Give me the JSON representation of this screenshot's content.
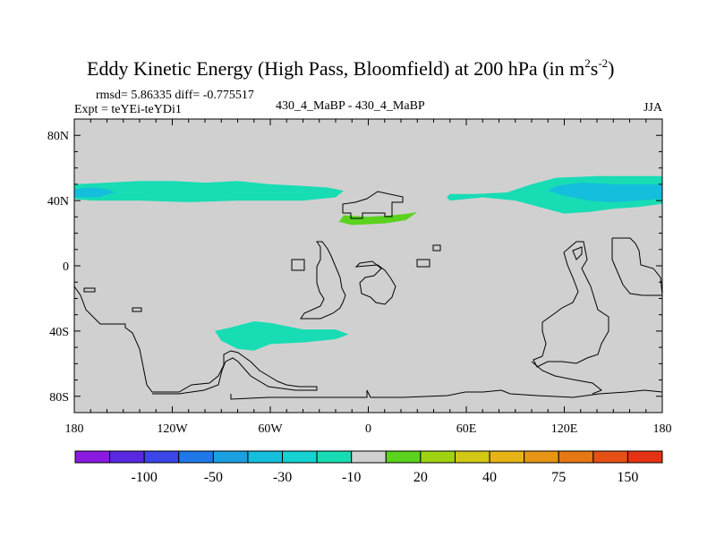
{
  "chart_data": {
    "type": "heatmap",
    "title": "Eddy Kinetic Energy (High Pass, Bloomfield) at 200 hPa (in m",
    "title_units_sup_1": "2",
    "title_units_mid": "s",
    "title_units_sup_2": "-2",
    "title_close": ")",
    "stats": "rmsd= 5.86335 diff= -0.775517",
    "experiment": "Expt = teYEi-teYDi1",
    "comparison": "430_4_MaBP - 430_4_MaBP",
    "season": "JJA",
    "xlim": [
      -180,
      180
    ],
    "ylim": [
      -90,
      90
    ],
    "x_ticks": [
      {
        "value": -180,
        "label": "180"
      },
      {
        "value": -120,
        "label": "120W"
      },
      {
        "value": -60,
        "label": "60W"
      },
      {
        "value": 0,
        "label": "0"
      },
      {
        "value": 60,
        "label": "60E"
      },
      {
        "value": 120,
        "label": "120E"
      },
      {
        "value": 180,
        "label": "180"
      }
    ],
    "y_ticks": [
      {
        "value": 80,
        "label": "80N"
      },
      {
        "value": 40,
        "label": "40N"
      },
      {
        "value": 0,
        "label": "0"
      },
      {
        "value": -40,
        "label": "40S"
      },
      {
        "value": -80,
        "label": "80S"
      }
    ],
    "background_color": "#d0d0d0",
    "colorbar": {
      "colors": [
        "#8a1ae0",
        "#5a28e0",
        "#3a46e8",
        "#1e78e8",
        "#1aa0e0",
        "#14bedc",
        "#14d2d2",
        "#18dcb4",
        "#d0d0d0",
        "#5ad21e",
        "#a0d214",
        "#d2c814",
        "#e6b414",
        "#e69614",
        "#e67814",
        "#e65014",
        "#e63214"
      ],
      "labels": [
        {
          "after_index": 1,
          "text": "-100"
        },
        {
          "after_index": 3,
          "text": "-50"
        },
        {
          "after_index": 5,
          "text": "-30"
        },
        {
          "after_index": 7,
          "text": "-10"
        },
        {
          "after_index": 9,
          "text": "20"
        },
        {
          "after_index": 11,
          "text": "40"
        },
        {
          "after_index": 13,
          "text": "75"
        },
        {
          "after_index": 15,
          "text": "150"
        }
      ]
    },
    "anomaly_regions": [
      {
        "name": "nh-jet-west",
        "level": "-10",
        "color": "#18dcb4",
        "polygon": [
          [
            -180,
            50
          ],
          [
            -160,
            51
          ],
          [
            -140,
            52
          ],
          [
            -120,
            52
          ],
          [
            -100,
            51
          ],
          [
            -80,
            52
          ],
          [
            -60,
            50
          ],
          [
            -40,
            49
          ],
          [
            -25,
            48
          ],
          [
            -15,
            46
          ],
          [
            -20,
            42
          ],
          [
            -40,
            40
          ],
          [
            -60,
            40
          ],
          [
            -80,
            40
          ],
          [
            -110,
            39
          ],
          [
            -140,
            40
          ],
          [
            -170,
            40
          ],
          [
            -180,
            41
          ]
        ]
      },
      {
        "name": "nh-jet-west-core",
        "level": "-30",
        "color": "#14bedc",
        "polygon": [
          [
            -180,
            47
          ],
          [
            -170,
            48
          ],
          [
            -160,
            47
          ],
          [
            -155,
            45
          ],
          [
            -165,
            42
          ],
          [
            -180,
            42
          ]
        ]
      },
      {
        "name": "nh-jet-east",
        "level": "-10",
        "color": "#18dcb4",
        "polygon": [
          [
            50,
            44
          ],
          [
            65,
            44
          ],
          [
            85,
            45
          ],
          [
            100,
            50
          ],
          [
            115,
            54
          ],
          [
            140,
            55
          ],
          [
            165,
            55
          ],
          [
            180,
            55
          ],
          [
            180,
            38
          ],
          [
            165,
            36
          ],
          [
            150,
            35
          ],
          [
            135,
            33
          ],
          [
            120,
            32
          ],
          [
            105,
            36
          ],
          [
            90,
            40
          ],
          [
            70,
            42
          ],
          [
            50,
            40
          ],
          [
            48,
            42
          ]
        ]
      },
      {
        "name": "nh-jet-east-core",
        "level": "-30",
        "color": "#14bedc",
        "polygon": [
          [
            115,
            49
          ],
          [
            130,
            51
          ],
          [
            150,
            50
          ],
          [
            170,
            50
          ],
          [
            180,
            50
          ],
          [
            180,
            41
          ],
          [
            165,
            40
          ],
          [
            150,
            39
          ],
          [
            135,
            40
          ],
          [
            120,
            43
          ],
          [
            110,
            46
          ]
        ]
      },
      {
        "name": "positive-patch",
        "level": "20",
        "color": "#5ad21e",
        "polygon": [
          [
            -15,
            31
          ],
          [
            0,
            30
          ],
          [
            15,
            31
          ],
          [
            24,
            32
          ],
          [
            30,
            33
          ],
          [
            23,
            28
          ],
          [
            10,
            26
          ],
          [
            -10,
            25
          ],
          [
            -18,
            27
          ]
        ]
      },
      {
        "name": "sh-jet",
        "level": "-10",
        "color": "#18dcb4",
        "polygon": [
          [
            -94,
            -40
          ],
          [
            -85,
            -38
          ],
          [
            -70,
            -34
          ],
          [
            -60,
            -35
          ],
          [
            -40,
            -39
          ],
          [
            -20,
            -39
          ],
          [
            -12,
            -42
          ],
          [
            -20,
            -45
          ],
          [
            -40,
            -47
          ],
          [
            -60,
            -48
          ],
          [
            -70,
            -52
          ],
          [
            -80,
            -51
          ],
          [
            -90,
            -46
          ]
        ]
      }
    ]
  }
}
